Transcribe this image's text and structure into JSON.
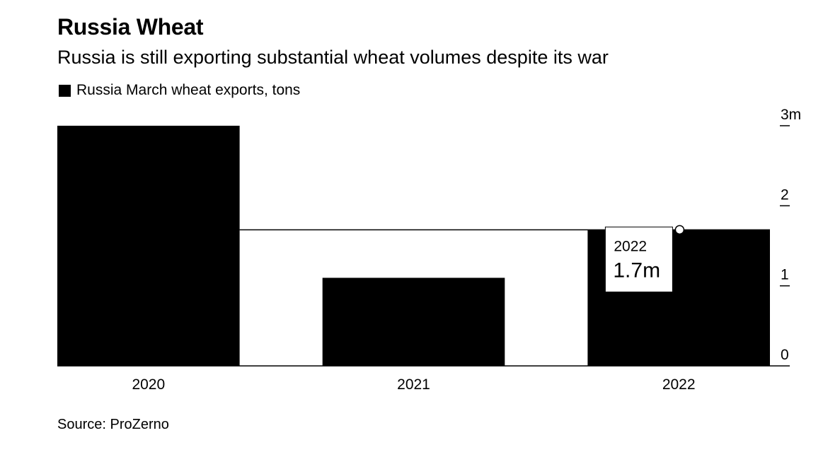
{
  "chart_data": {
    "type": "bar",
    "title": "Russia Wheat",
    "subtitle": "Russia is still exporting substantial wheat volumes despite its war",
    "categories": [
      "2020",
      "2021",
      "2022"
    ],
    "series": [
      {
        "name": "Russia March wheat exports, tons",
        "values": [
          3.0,
          1.1,
          1.7
        ],
        "color": "#000000"
      }
    ],
    "ylim": [
      0,
      3
    ],
    "yticks": [
      {
        "value": 0,
        "label": "0"
      },
      {
        "value": 1,
        "label": "1"
      },
      {
        "value": 2,
        "label": "2"
      },
      {
        "value": 3,
        "label": "3m"
      }
    ],
    "reference_line": {
      "value": 1.7
    },
    "annotation": {
      "category": "2022",
      "year": "2022",
      "value_label": "1.7m"
    },
    "axis_position": "right",
    "grid": false,
    "legend_position": "top-left"
  },
  "source": "Source: ProZerno"
}
